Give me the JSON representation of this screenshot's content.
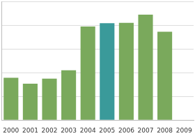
{
  "chart_data": {
    "type": "bar",
    "categories": [
      "2000",
      "2001",
      "2002",
      "2003",
      "2004",
      "2005",
      "2006",
      "2007",
      "2008",
      "2009"
    ],
    "values": [
      1.78,
      1.53,
      1.75,
      2.1,
      3.94,
      4.08,
      4.1,
      4.44,
      3.72,
      null
    ],
    "colors": [
      "#7aa95c",
      "#7aa95c",
      "#7aa95c",
      "#7aa95c",
      "#7aa95c",
      "#3a9a9a",
      "#7aa95c",
      "#7aa95c",
      "#7aa95c",
      "#7aa95c"
    ],
    "ylim": [
      0,
      5
    ],
    "yticks": [
      0,
      1,
      2,
      3,
      4,
      5
    ],
    "grid": true,
    "tick_labels": "x"
  }
}
